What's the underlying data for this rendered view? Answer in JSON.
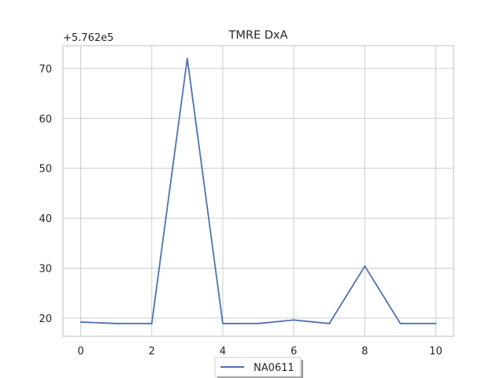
{
  "chart_data": {
    "type": "line",
    "title": "TMRE DxA",
    "y_offset_label": "+5.762e5",
    "x": [
      0,
      1,
      2,
      3,
      4,
      5,
      6,
      7,
      8,
      9,
      10
    ],
    "series": [
      {
        "name": "NA0611",
        "color": "#4c72b0",
        "values": [
          19.2,
          18.9,
          18.9,
          72.0,
          18.9,
          18.9,
          19.6,
          18.9,
          30.4,
          18.9,
          18.9
        ]
      }
    ],
    "xlim": [
      -0.5,
      10.5
    ],
    "ylim": [
      16.35,
      74.55
    ],
    "x_ticks": [
      0,
      2,
      4,
      6,
      8,
      10
    ],
    "y_ticks": [
      20,
      30,
      40,
      50,
      60,
      70
    ],
    "grid": true,
    "legend_position": "bottom-center",
    "colors": {
      "grid": "#cccccc",
      "axes_edge": "#cccccc",
      "text": "#262626"
    }
  }
}
